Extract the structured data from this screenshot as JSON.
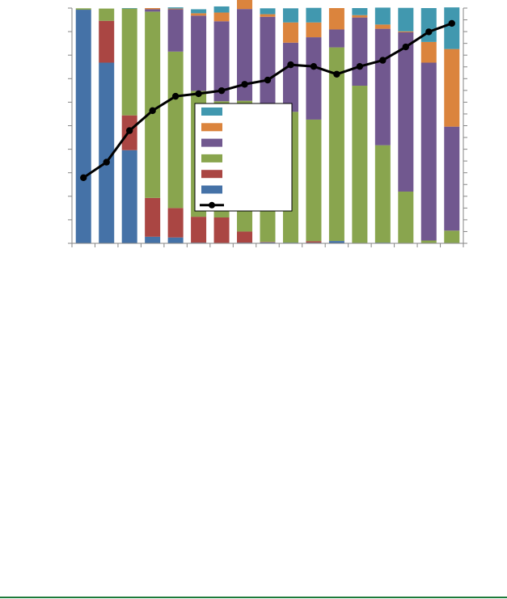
{
  "chart_data": {
    "type": "bar",
    "stacked": true,
    "categories": [
      "",
      "",
      "",
      "",
      "",
      "",
      "",
      "",
      "",
      "",
      "",
      "",
      "",
      "",
      "",
      "",
      ""
    ],
    "ylim": [
      0,
      100
    ],
    "y2lim": [
      0,
      100
    ],
    "legend_position": "center",
    "series": [
      {
        "color": "#4572a7",
        "values": [
          99.3,
          76.8,
          39.6,
          2.8,
          2.5,
          0.3,
          0.2,
          0.3,
          0.4,
          0.3,
          0.3,
          1.0,
          0.2,
          0.3,
          0.2,
          0.2,
          0.2
        ]
      },
      {
        "color": "#aa4643",
        "values": [
          0.0,
          17.8,
          14.8,
          16.5,
          12.5,
          11.0,
          10.8,
          4.7,
          0.2,
          0.0,
          0.6,
          0.0,
          0.0,
          0.0,
          0.0,
          0.0,
          0.0
        ]
      },
      {
        "color": "#89a54e",
        "values": [
          0.6,
          5.2,
          45.4,
          79.2,
          66.5,
          53.5,
          49.4,
          55.6,
          51.4,
          55.6,
          51.7,
          82.3,
          66.8,
          41.4,
          21.8,
          1.0,
          5.2
        ]
      },
      {
        "color": "#71588f",
        "values": [
          0.0,
          0.0,
          0.0,
          1.0,
          18.0,
          32.0,
          34.0,
          39.0,
          44.3,
          29.4,
          35.0,
          7.6,
          29.0,
          49.5,
          67.7,
          75.6,
          44.2
        ]
      },
      {
        "color": "#db843d",
        "values": [
          0.0,
          0.0,
          0.0,
          0.5,
          0.3,
          1.0,
          3.7,
          4.4,
          1.1,
          8.6,
          6.3,
          9.1,
          1.0,
          1.8,
          0.4,
          8.8,
          33.0
        ]
      },
      {
        "color": "#4198af",
        "values": [
          0.0,
          0.0,
          0.2,
          0.0,
          0.5,
          1.7,
          2.6,
          1.9,
          2.5,
          6.0,
          6.2,
          0.0,
          3.0,
          7.2,
          10.0,
          14.4,
          17.7
        ]
      }
    ],
    "line": {
      "color": "#000000",
      "values": [
        27.9,
        34.5,
        47.9,
        56.4,
        62.5,
        63.6,
        64.9,
        67.6,
        69.4,
        75.9,
        75.2,
        71.9,
        75.2,
        77.8,
        83.5,
        89.9,
        93.5
      ]
    },
    "legend_entries": [
      {
        "kind": "bar",
        "color": "#4198af"
      },
      {
        "kind": "bar",
        "color": "#db843d"
      },
      {
        "kind": "bar",
        "color": "#71588f"
      },
      {
        "kind": "bar",
        "color": "#89a54e"
      },
      {
        "kind": "bar",
        "color": "#aa4643"
      },
      {
        "kind": "bar",
        "color": "#4572a7"
      },
      {
        "kind": "line",
        "color": "#000000"
      }
    ]
  }
}
